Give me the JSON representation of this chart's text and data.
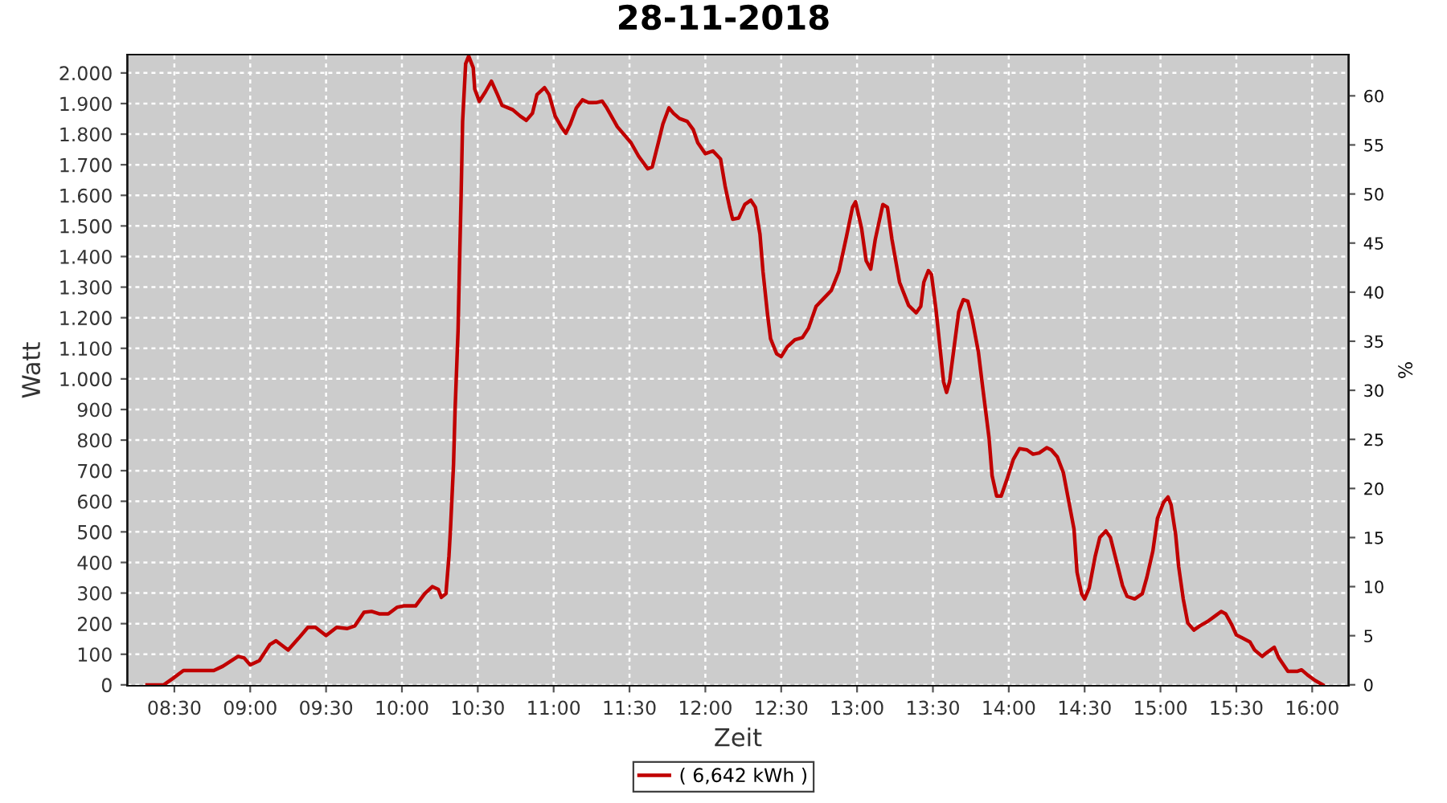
{
  "chart_data": {
    "type": "line",
    "title": "28-11-2018",
    "xlabel": "Zeit",
    "ylabel": "Watt",
    "y2label": "%",
    "xlim": [
      8.19,
      16.24
    ],
    "xticks": [
      {
        "value": 8.5,
        "label": "08:30"
      },
      {
        "value": 9,
        "label": "09:00"
      },
      {
        "value": 9.5,
        "label": "09:30"
      },
      {
        "value": 10,
        "label": "10:00"
      },
      {
        "value": 10.5,
        "label": "10:30"
      },
      {
        "value": 11,
        "label": "11:00"
      },
      {
        "value": 11.5,
        "label": "11:30"
      },
      {
        "value": 12,
        "label": "12:00"
      },
      {
        "value": 12.5,
        "label": "12:30"
      },
      {
        "value": 13,
        "label": "13:00"
      },
      {
        "value": 13.5,
        "label": "13:30"
      },
      {
        "value": 14,
        "label": "14:00"
      },
      {
        "value": 14.5,
        "label": "14:30"
      },
      {
        "value": 15,
        "label": "15:00"
      },
      {
        "value": 15.5,
        "label": "15:30"
      },
      {
        "value": 16,
        "label": "16:00"
      }
    ],
    "ylim": [
      -3,
      2060
    ],
    "yticks": [
      0,
      100,
      200,
      300,
      400,
      500,
      600,
      700,
      800,
      900,
      {
        "value": 1000,
        "label": "1.000"
      },
      {
        "value": 1100,
        "label": "1.100"
      },
      {
        "value": 1200,
        "label": "1.200"
      },
      {
        "value": 1300,
        "label": "1.300"
      },
      {
        "value": 1400,
        "label": "1.400"
      },
      {
        "value": 1500,
        "label": "1.500"
      },
      {
        "value": 1600,
        "label": "1.600"
      },
      {
        "value": 1700,
        "label": "1.700"
      },
      {
        "value": 1800,
        "label": "1.800"
      },
      {
        "value": 1900,
        "label": "1.900"
      },
      {
        "value": 2000,
        "label": "2.000"
      }
    ],
    "y2lim": [
      -0.1,
      64.2
    ],
    "y2ticks": [
      0,
      5,
      10,
      15,
      20,
      25,
      30,
      35,
      40,
      45,
      50,
      55,
      60
    ],
    "grid": true,
    "legend": "bottom",
    "series": [
      {
        "name": "( 6,642 kWh )",
        "color": "#c00000",
        "x": [
          8.32,
          8.43,
          8.49,
          8.56,
          8.63,
          8.76,
          8.82,
          8.92,
          8.96,
          9.0,
          9.06,
          9.13,
          9.17,
          9.25,
          9.32,
          9.38,
          9.43,
          9.5,
          9.57,
          9.64,
          9.69,
          9.75,
          9.8,
          9.85,
          9.91,
          9.97,
          10.01,
          10.09,
          10.15,
          10.2,
          10.24,
          10.26,
          10.29,
          10.31,
          10.32,
          10.34,
          10.35,
          10.37,
          10.38,
          10.39,
          10.4,
          10.42,
          10.44,
          10.47,
          10.48,
          10.51,
          10.55,
          10.59,
          10.63,
          10.66,
          10.73,
          10.78,
          10.82,
          10.86,
          10.89,
          10.94,
          10.97,
          11.01,
          11.05,
          11.08,
          11.11,
          11.15,
          11.19,
          11.23,
          11.28,
          11.32,
          11.35,
          11.42,
          11.51,
          11.56,
          11.62,
          11.65,
          11.69,
          11.72,
          11.76,
          11.79,
          11.83,
          11.88,
          11.92,
          11.95,
          12.0,
          12.05,
          12.1,
          12.13,
          12.16,
          12.18,
          12.22,
          12.26,
          12.3,
          12.33,
          12.36,
          12.38,
          12.41,
          12.43,
          12.47,
          12.5,
          12.54,
          12.59,
          12.64,
          12.68,
          12.73,
          12.78,
          12.83,
          12.88,
          12.93,
          12.97,
          12.99,
          13.03,
          13.06,
          13.09,
          13.12,
          13.17,
          13.2,
          13.23,
          13.28,
          13.34,
          13.39,
          13.42,
          13.44,
          13.47,
          13.49,
          13.52,
          13.55,
          13.57,
          13.59,
          13.61,
          13.64,
          13.67,
          13.7,
          13.73,
          13.76,
          13.8,
          13.83,
          13.87,
          13.89,
          13.92,
          13.95,
          13.99,
          14.03,
          14.07,
          14.12,
          14.16,
          14.2,
          14.25,
          14.28,
          14.32,
          14.36,
          14.39,
          14.43,
          14.45,
          14.48,
          14.5,
          14.53,
          14.57,
          14.6,
          14.64,
          14.67,
          14.71,
          14.75,
          14.78,
          14.83,
          14.88,
          14.91,
          14.95,
          14.98,
          15.02,
          15.05,
          15.07,
          15.1,
          15.12,
          15.15,
          15.18,
          15.22,
          15.26,
          15.31,
          15.36,
          15.4,
          15.43,
          15.47,
          15.5,
          15.54,
          15.59,
          15.62,
          15.67,
          15.7,
          15.75,
          15.78,
          15.84,
          15.9,
          15.93,
          15.97,
          16.02,
          16.07
        ],
        "values": [
          0,
          0,
          21,
          47,
          47,
          47,
          61,
          93,
          88,
          65,
          79,
          132,
          144,
          114,
          153,
          188,
          188,
          161,
          188,
          184,
          193,
          237,
          240,
          232,
          232,
          254,
          258,
          258,
          298,
          321,
          312,
          286,
          298,
          421,
          509,
          719,
          895,
          1158,
          1386,
          1596,
          1842,
          2030,
          2055,
          2017,
          1947,
          1907,
          1938,
          1973,
          1929,
          1894,
          1880,
          1859,
          1845,
          1868,
          1929,
          1952,
          1929,
          1859,
          1824,
          1803,
          1833,
          1886,
          1912,
          1903,
          1903,
          1908,
          1886,
          1824,
          1772,
          1728,
          1687,
          1693,
          1772,
          1833,
          1886,
          1868,
          1851,
          1842,
          1815,
          1772,
          1736,
          1745,
          1719,
          1631,
          1561,
          1522,
          1526,
          1570,
          1584,
          1561,
          1473,
          1351,
          1210,
          1131,
          1082,
          1073,
          1105,
          1128,
          1135,
          1166,
          1237,
          1263,
          1289,
          1351,
          1465,
          1561,
          1579,
          1491,
          1386,
          1359,
          1456,
          1570,
          1561,
          1456,
          1316,
          1240,
          1216,
          1237,
          1316,
          1354,
          1342,
          1228,
          1087,
          991,
          956,
          991,
          1105,
          1219,
          1259,
          1254,
          1193,
          1087,
          965,
          807,
          684,
          617,
          617,
          675,
          737,
          772,
          768,
          754,
          758,
          775,
          768,
          745,
          693,
          614,
          509,
          368,
          298,
          281,
          316,
          421,
          482,
          503,
          482,
          403,
          324,
          289,
          281,
          298,
          351,
          438,
          544,
          596,
          614,
          588,
          491,
          386,
          281,
          202,
          179,
          193,
          207,
          225,
          240,
          232,
          196,
          163,
          153,
          140,
          114,
          93,
          105,
          123,
          88,
          44,
          44,
          49,
          32,
          14,
          0
        ]
      }
    ]
  }
}
